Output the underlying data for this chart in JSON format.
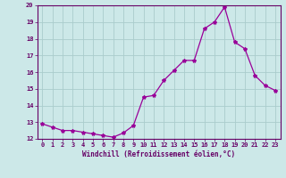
{
  "x": [
    0,
    1,
    2,
    3,
    4,
    5,
    6,
    7,
    8,
    9,
    10,
    11,
    12,
    13,
    14,
    15,
    16,
    17,
    18,
    19,
    20,
    21,
    22,
    23
  ],
  "y": [
    12.9,
    12.7,
    12.5,
    12.5,
    12.4,
    12.3,
    12.2,
    12.1,
    12.35,
    12.8,
    14.5,
    14.6,
    15.5,
    16.1,
    16.7,
    16.7,
    18.6,
    19.0,
    19.9,
    17.8,
    17.4,
    15.8,
    15.2,
    14.9
  ],
  "line_color": "#990099",
  "marker": "*",
  "marker_size": 3,
  "bg_color": "#cce8e8",
  "grid_color": "#aacccc",
  "xlabel": "Windchill (Refroidissement éolien,°C)",
  "xlabel_color": "#660066",
  "tick_color": "#660066",
  "axis_color": "#660066",
  "ylim": [
    12,
    20
  ],
  "xlim": [
    -0.5,
    23.5
  ],
  "yticks": [
    12,
    13,
    14,
    15,
    16,
    17,
    18,
    19,
    20
  ],
  "xticks": [
    0,
    1,
    2,
    3,
    4,
    5,
    6,
    7,
    8,
    9,
    10,
    11,
    12,
    13,
    14,
    15,
    16,
    17,
    18,
    19,
    20,
    21,
    22,
    23
  ]
}
